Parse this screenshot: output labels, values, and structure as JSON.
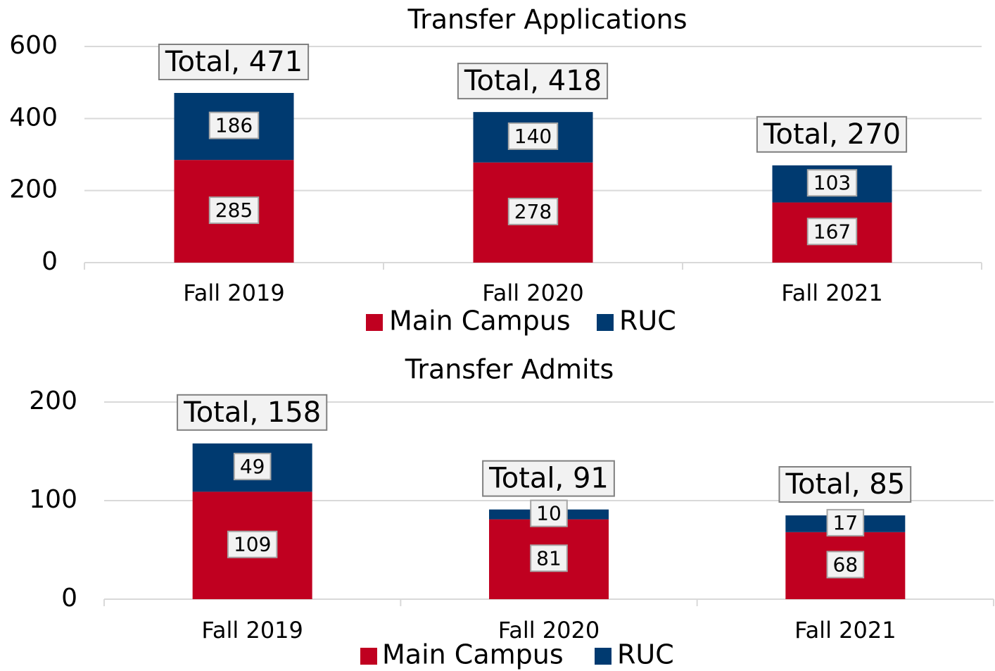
{
  "chart_data": [
    {
      "type": "stacked_bar",
      "title": "Transfer Applications",
      "categories": [
        "Fall 2019",
        "Fall 2020",
        "Fall 2021"
      ],
      "series": [
        {
          "name": "Main Campus",
          "color": "#c00020",
          "values": [
            285,
            278,
            167
          ]
        },
        {
          "name": "RUC",
          "color": "#003a70",
          "values": [
            186,
            140,
            103
          ]
        }
      ],
      "totals": [
        471,
        418,
        270
      ],
      "total_labels": [
        "Total, 471",
        "Total, 418",
        "Total, 270"
      ],
      "ylim": [
        0,
        600
      ],
      "yticks": [
        0,
        200,
        400,
        600
      ],
      "grid": true,
      "legend": "bottom"
    },
    {
      "type": "stacked_bar",
      "title": "Transfer Admits",
      "categories": [
        "Fall 2019",
        "Fall 2020",
        "Fall 2021"
      ],
      "series": [
        {
          "name": "Main Campus",
          "color": "#c00020",
          "values": [
            109,
            81,
            68
          ]
        },
        {
          "name": "RUC",
          "color": "#003a70",
          "values": [
            49,
            10,
            17
          ]
        }
      ],
      "totals": [
        158,
        91,
        85
      ],
      "total_labels": [
        "Total, 158",
        "Total, 91",
        "Total, 85"
      ],
      "ylim": [
        0,
        200
      ],
      "yticks": [
        0,
        100,
        200
      ],
      "grid": true,
      "legend": "bottom"
    }
  ]
}
